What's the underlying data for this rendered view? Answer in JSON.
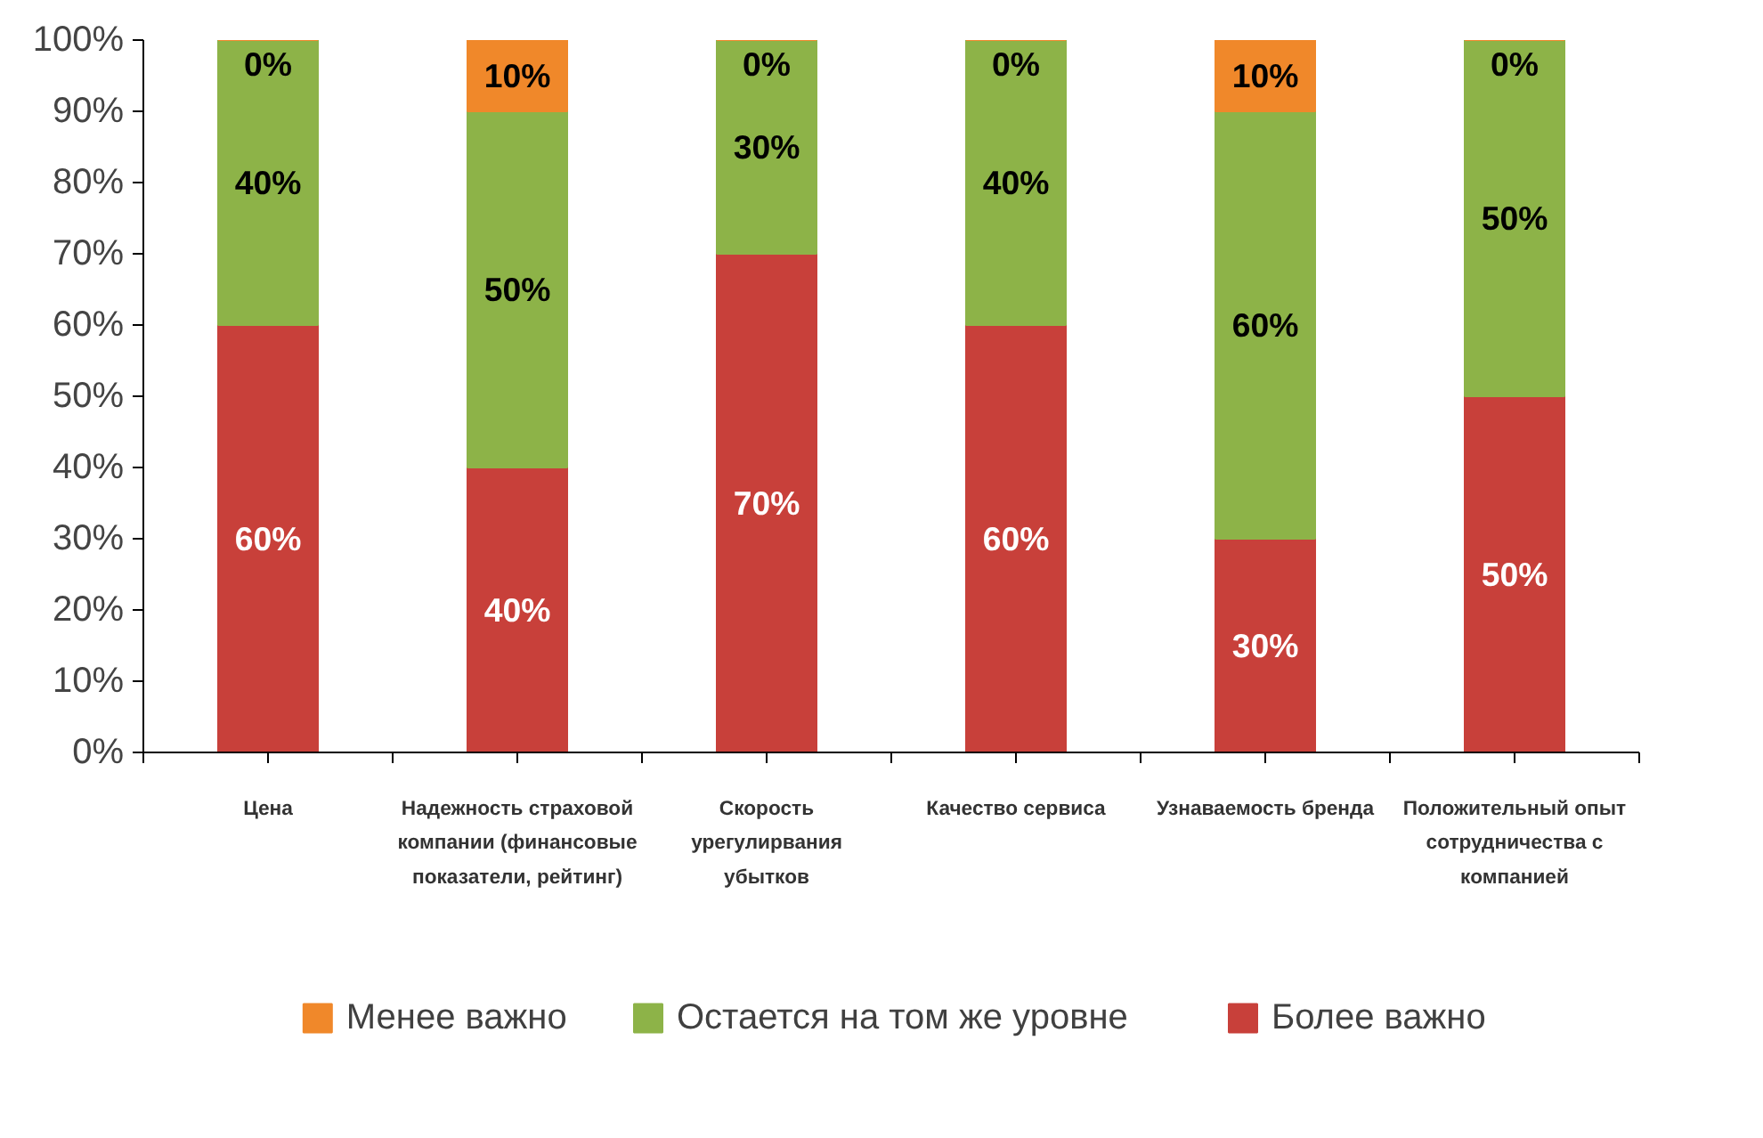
{
  "chart_data": {
    "type": "bar",
    "stacked": true,
    "legend": "bottom",
    "grid": false,
    "categories": [
      "Цена",
      "Надежность страховой компании (финансовые показатели, рейтинг)",
      "Скорость урегулирвания убытков",
      "Качество сервиса",
      "Узнаваемость бренда",
      "Положительный опыт сотрудничества с компанией"
    ],
    "series": [
      {
        "name": "Более важно",
        "color": "#c8403a",
        "values": [
          60,
          40,
          70,
          60,
          30,
          50
        ],
        "value_labels": [
          "60%",
          "40%",
          "70%",
          "60%",
          "30%",
          "50%"
        ]
      },
      {
        "name": "Остается на том же уровне",
        "color": "#8db348",
        "values": [
          40,
          50,
          30,
          40,
          60,
          50
        ],
        "value_labels": [
          "40%",
          "50%",
          "30%",
          "40%",
          "60%",
          "50%"
        ]
      },
      {
        "name": "Менее важно",
        "color": "#f0882a",
        "values": [
          0,
          10,
          0,
          0,
          10,
          0
        ],
        "value_labels": [
          "0%",
          "10%",
          "0%",
          "0%",
          "10%",
          "0%"
        ]
      }
    ],
    "ylim": [
      0,
      100
    ],
    "yticks": [
      {
        "value": 0,
        "label": "0%"
      },
      {
        "value": 10,
        "label": "10%"
      },
      {
        "value": 20,
        "label": "20%"
      },
      {
        "value": 30,
        "label": "30%"
      },
      {
        "value": 40,
        "label": "40%"
      },
      {
        "value": 50,
        "label": "50%"
      },
      {
        "value": 60,
        "label": "60%"
      },
      {
        "value": 70,
        "label": "70%"
      },
      {
        "value": 80,
        "label": "80%"
      },
      {
        "value": 90,
        "label": "90%"
      },
      {
        "value": 100,
        "label": "100%"
      }
    ]
  }
}
